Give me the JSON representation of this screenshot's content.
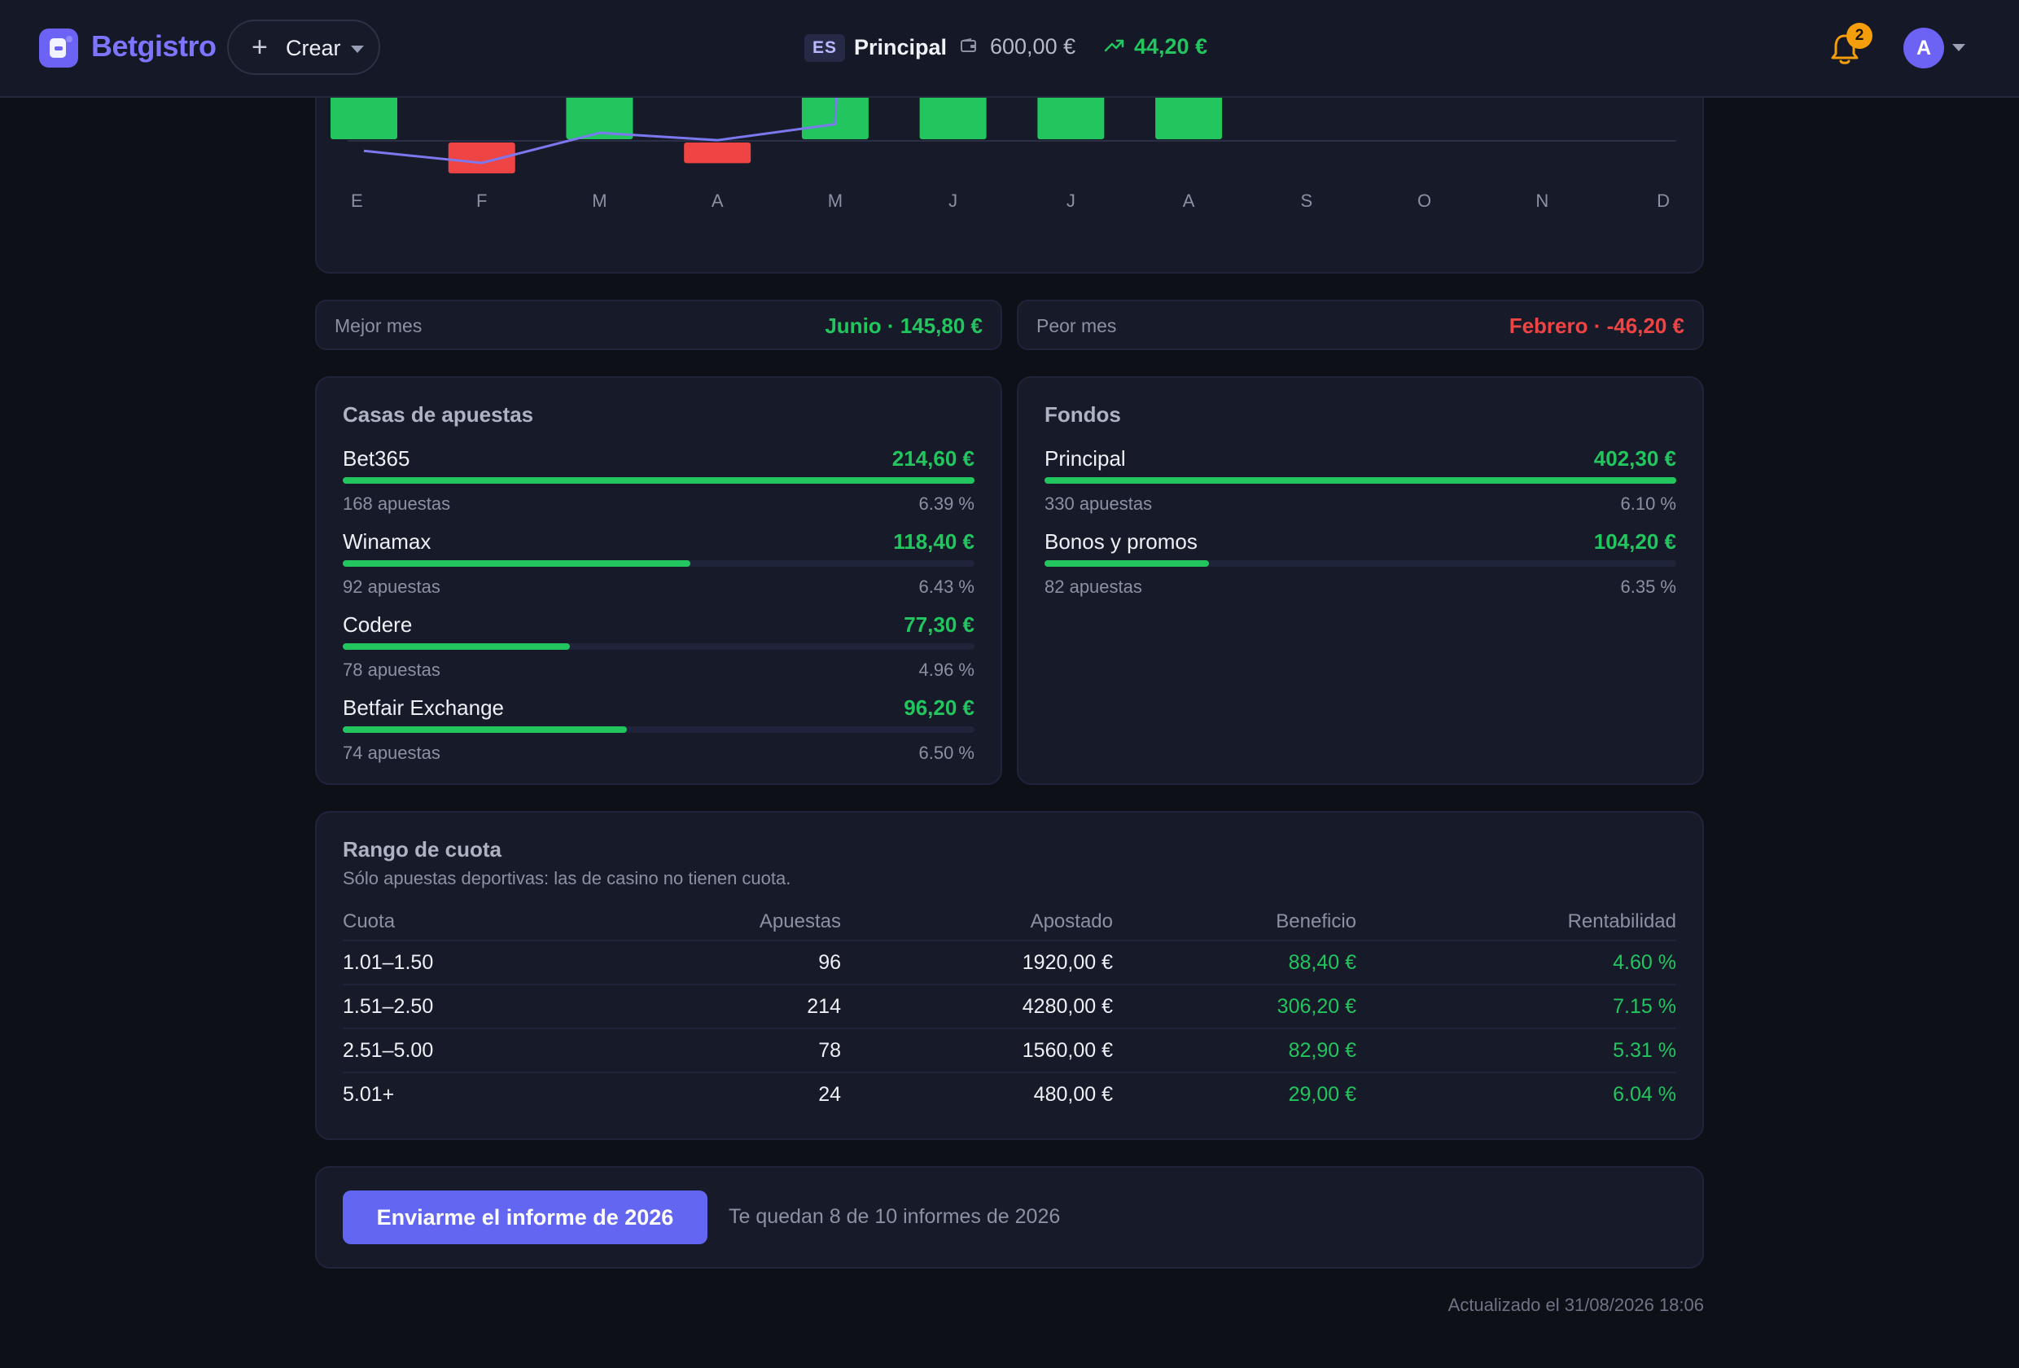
{
  "header": {
    "brand": "Betgistro",
    "create_label": "Crear",
    "lang": "ES",
    "fund": "Principal",
    "balance": "600,00 €",
    "profit": "44,20 €",
    "notifications": "2",
    "avatar": "A"
  },
  "chart_data": {
    "type": "bar",
    "categories": [
      "E",
      "F",
      "M",
      "A",
      "M",
      "J",
      "J",
      "A",
      "S",
      "O",
      "N",
      "D"
    ],
    "series": [
      {
        "type": "bar",
        "values": [
          null,
          -46.2,
          null,
          -31.0,
          null,
          145.8,
          null,
          null,
          null,
          null,
          null,
          null
        ],
        "color_positive": "#22c55e",
        "color_negative": "#ef4444"
      },
      {
        "type": "line",
        "values": [
          -15,
          -33,
          12,
          1,
          25,
          null,
          null,
          null,
          null,
          null,
          null,
          null
        ],
        "color": "#7b78f0"
      }
    ],
    "partially_visible": true
  },
  "best_worst": {
    "best_label": "Mejor mes",
    "best_value": "Junio · 145,80 €",
    "worst_label": "Peor mes",
    "worst_value": "Febrero · -46,20 €"
  },
  "bookmakers": {
    "title": "Casas de apuestas",
    "items": [
      {
        "name": "Bet365",
        "value": "214,60 €",
        "bets": "168 apuestas",
        "pct": "6.39 %",
        "share": 1.0
      },
      {
        "name": "Winamax",
        "value": "118,40 €",
        "bets": "92 apuestas",
        "pct": "6.43 %",
        "share": 0.55
      },
      {
        "name": "Codere",
        "value": "77,30 €",
        "bets": "78 apuestas",
        "pct": "4.96 %",
        "share": 0.36
      },
      {
        "name": "Betfair Exchange",
        "value": "96,20 €",
        "bets": "74 apuestas",
        "pct": "6.50 %",
        "share": 0.45
      }
    ]
  },
  "funds": {
    "title": "Fondos",
    "items": [
      {
        "name": "Principal",
        "value": "402,30 €",
        "bets": "330 apuestas",
        "pct": "6.10 %",
        "share": 1.0
      },
      {
        "name": "Bonos y promos",
        "value": "104,20 €",
        "bets": "82 apuestas",
        "pct": "6.35 %",
        "share": 0.26
      }
    ]
  },
  "odds": {
    "title": "Rango de cuota",
    "subtitle": "Sólo apuestas deportivas: las de casino no tienen cuota.",
    "headers": [
      "Cuota",
      "Apuestas",
      "Apostado",
      "Beneficio",
      "Rentabilidad"
    ],
    "rows": [
      [
        "1.01–1.50",
        "96",
        "1920,00 €",
        "88,40 €",
        "4.60 %"
      ],
      [
        "1.51–2.50",
        "214",
        "4280,00 €",
        "306,20 €",
        "7.15 %"
      ],
      [
        "2.51–5.00",
        "78",
        "1560,00 €",
        "82,90 €",
        "5.31 %"
      ],
      [
        "5.01+",
        "24",
        "480,00 €",
        "29,00 €",
        "6.04 %"
      ]
    ]
  },
  "report": {
    "button": "Enviarme el informe de 2026",
    "note": "Te quedan 8 de 10 informes de 2026"
  },
  "updated": "Actualizado el 31/08/2026 18:06"
}
